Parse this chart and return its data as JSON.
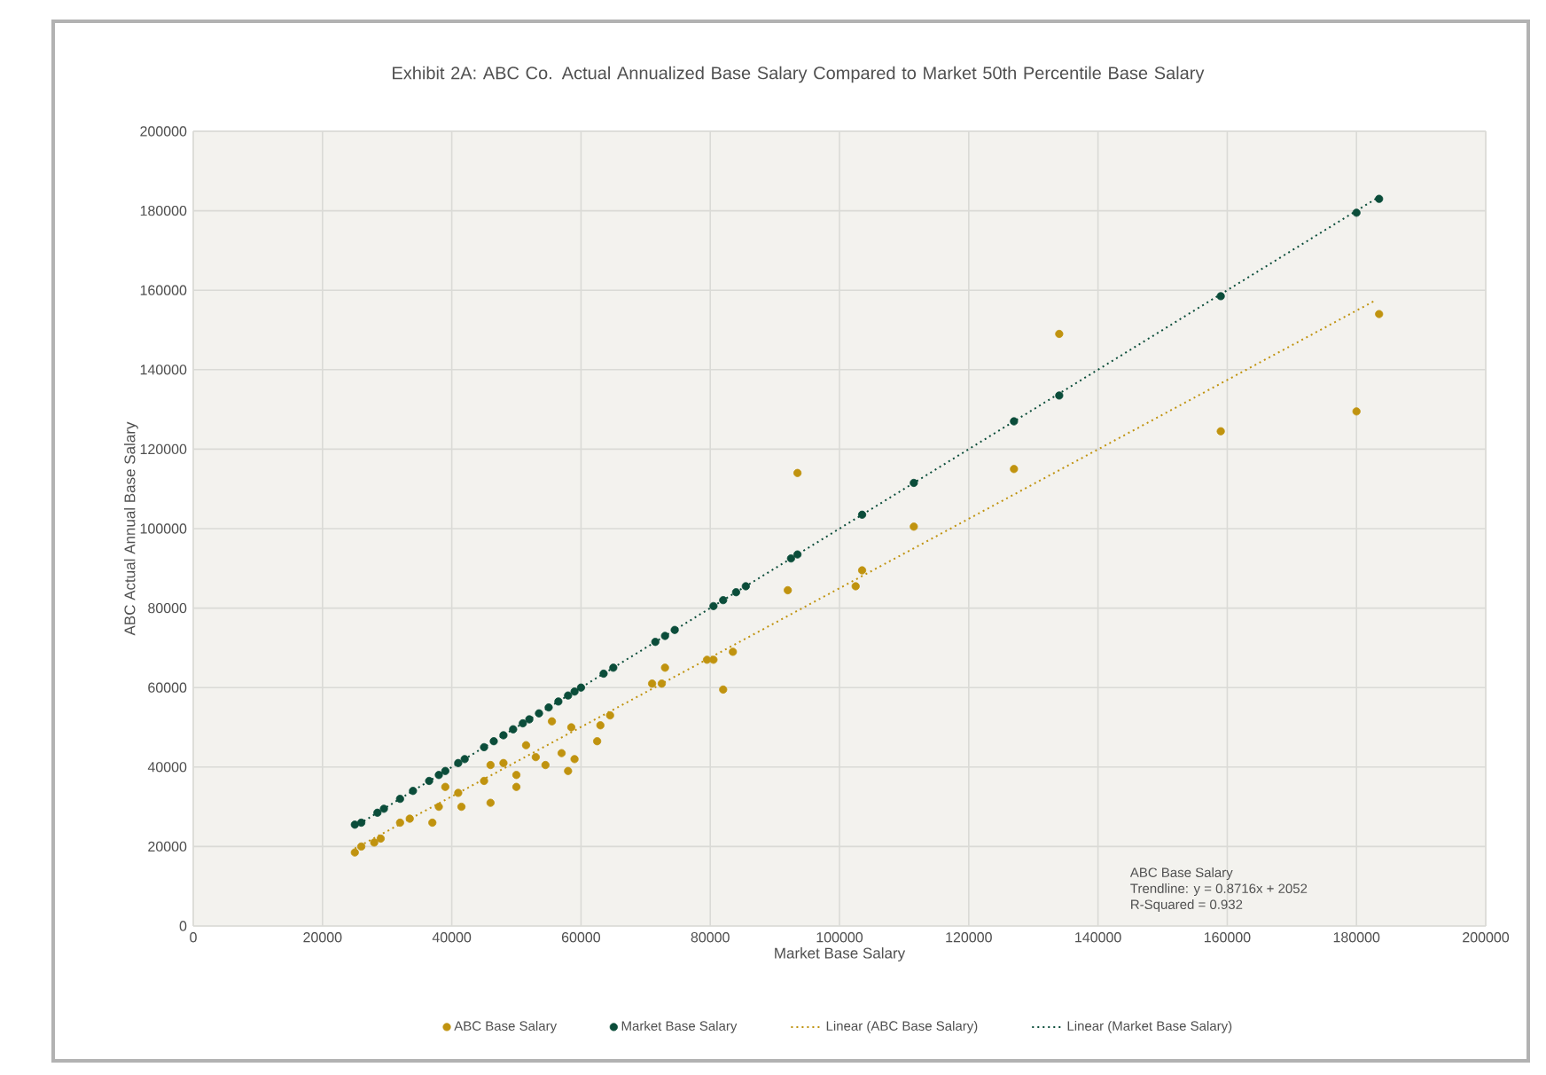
{
  "chart_data": {
    "type": "scatter",
    "title": "Exhibit 2A: ABC Co. Actual Annualized Base Salary Compared to Market 50th Percentile Base Salary",
    "xlabel": "Market Base Salary",
    "ylabel": "ABC Actual Annual Base Salary",
    "xlim": [
      0,
      200000
    ],
    "ylim": [
      0,
      200000
    ],
    "xticks": [
      0,
      20000,
      40000,
      60000,
      80000,
      100000,
      120000,
      140000,
      160000,
      180000,
      200000
    ],
    "yticks": [
      0,
      20000,
      40000,
      60000,
      80000,
      100000,
      120000,
      140000,
      160000,
      180000,
      200000
    ],
    "grid": true,
    "legend": "bottom",
    "marker": "circle",
    "annotations": [
      "ABC Base Salary",
      "Trendline: y = 0.8716x + 2052",
      "R-Squared = 0.932"
    ],
    "series": [
      {
        "name": "ABC Base Salary",
        "color": "#c0930f",
        "x": [
          25000,
          26000,
          28000,
          29000,
          32000,
          33500,
          37000,
          38000,
          39000,
          41000,
          41500,
          45000,
          46000,
          46000,
          48000,
          50000,
          50000,
          51500,
          53000,
          54500,
          55500,
          57000,
          58500,
          58000,
          59000,
          62500,
          63000,
          64500,
          71000,
          73000,
          72500,
          79500,
          80500,
          83500,
          82000,
          92000,
          93500,
          102500,
          103500,
          111500,
          127000,
          134000,
          159000,
          180000,
          183500
        ],
        "values": [
          18500,
          20000,
          21000,
          22000,
          26000,
          27000,
          26000,
          30000,
          35000,
          33500,
          30000,
          36500,
          40500,
          31000,
          41000,
          38000,
          35000,
          45500,
          42500,
          40500,
          51500,
          43500,
          50000,
          39000,
          42000,
          46500,
          50500,
          53000,
          61000,
          65000,
          61000,
          67000,
          67000,
          69000,
          59500,
          84500,
          114000,
          85500,
          89500,
          100500,
          115000,
          149000,
          124500,
          129500,
          154000
        ]
      },
      {
        "name": "Market Base Salary",
        "color": "#0b4d3a",
        "x": [
          25000,
          26000,
          28500,
          29500,
          32000,
          34000,
          36500,
          38000,
          39000,
          41000,
          42000,
          45000,
          46500,
          48000,
          49500,
          51000,
          52000,
          53500,
          55000,
          56500,
          58000,
          59000,
          60000,
          63500,
          65000,
          71500,
          73000,
          74500,
          80500,
          82000,
          84000,
          85500,
          92500,
          93500,
          103500,
          111500,
          127000,
          134000,
          159000,
          180000,
          183500
        ],
        "values": [
          25500,
          26000,
          28500,
          29500,
          32000,
          34000,
          36500,
          38000,
          39000,
          41000,
          42000,
          45000,
          46500,
          48000,
          49500,
          51000,
          52000,
          53500,
          55000,
          56500,
          58000,
          59000,
          60000,
          63500,
          65000,
          71500,
          73000,
          74500,
          80500,
          82000,
          84000,
          85500,
          92500,
          93500,
          103500,
          111500,
          127000,
          133500,
          158500,
          179500,
          183000
        ]
      },
      {
        "name": "Linear (ABC Base Salary)",
        "type": "line",
        "line_style": "dotted",
        "marker": "none",
        "color": "#c0930f",
        "x": [
          25000,
          183000
        ],
        "values": [
          19500,
          157500
        ]
      },
      {
        "name": "Linear (Market Base Salary)",
        "type": "line",
        "line_style": "dotted",
        "marker": "none",
        "color": "#0b4d3a",
        "x": [
          25000,
          183500
        ],
        "values": [
          25000,
          183500
        ]
      }
    ]
  }
}
